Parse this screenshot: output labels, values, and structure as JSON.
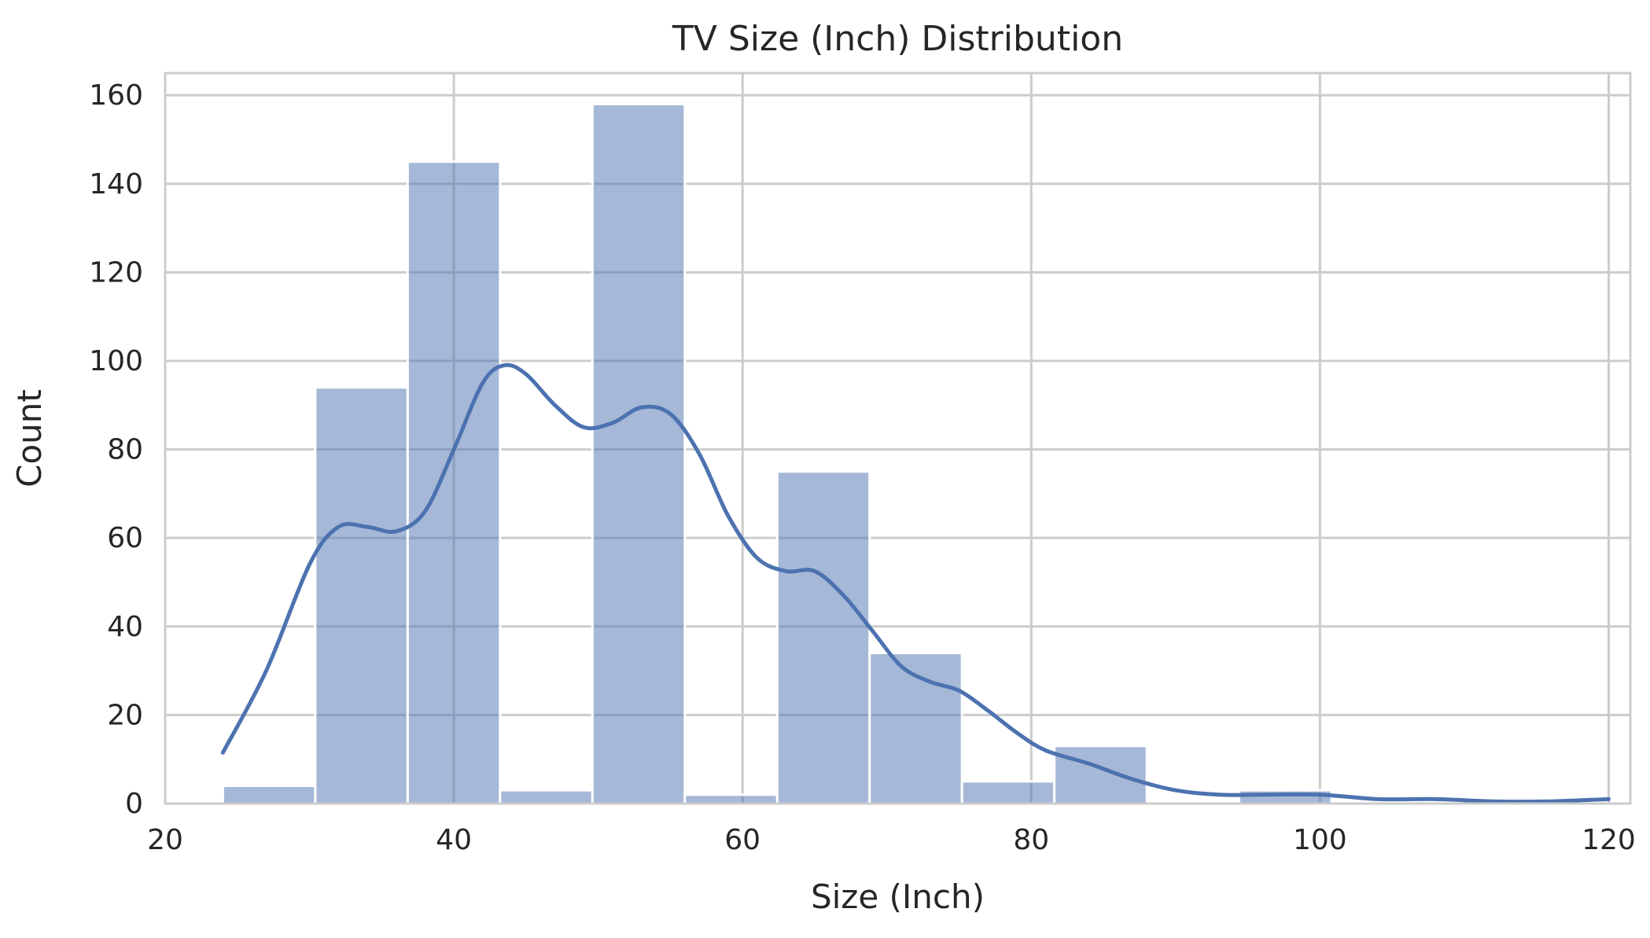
{
  "chart_data": {
    "type": "bar",
    "title": "TV Size (Inch) Distribution",
    "xlabel": "Size (Inch)",
    "ylabel": "Count",
    "xlim": [
      20,
      121.5
    ],
    "ylim": [
      0,
      165
    ],
    "xticks": [
      20,
      40,
      60,
      80,
      100,
      120
    ],
    "yticks": [
      0,
      20,
      40,
      60,
      80,
      100,
      120,
      140,
      160
    ],
    "grid": true,
    "colors": {
      "bar": "#4c72b0",
      "bar_opacity": 0.5,
      "kde": "#4c72b0",
      "grid": "#cccccc",
      "frame": "#cccccc"
    },
    "bins": [
      {
        "start": 24.0,
        "end": 30.4,
        "count": 4
      },
      {
        "start": 30.4,
        "end": 36.8,
        "count": 94
      },
      {
        "start": 36.8,
        "end": 43.2,
        "count": 145
      },
      {
        "start": 43.2,
        "end": 49.6,
        "count": 3
      },
      {
        "start": 49.6,
        "end": 56.0,
        "count": 158
      },
      {
        "start": 56.0,
        "end": 62.4,
        "count": 2
      },
      {
        "start": 62.4,
        "end": 68.8,
        "count": 75
      },
      {
        "start": 68.8,
        "end": 75.2,
        "count": 34
      },
      {
        "start": 75.2,
        "end": 81.6,
        "count": 5
      },
      {
        "start": 81.6,
        "end": 88.0,
        "count": 13
      },
      {
        "start": 88.0,
        "end": 94.4,
        "count": 0
      },
      {
        "start": 94.4,
        "end": 100.8,
        "count": 3
      },
      {
        "start": 100.8,
        "end": 107.2,
        "count": 0
      },
      {
        "start": 107.2,
        "end": 113.6,
        "count": 0
      },
      {
        "start": 113.6,
        "end": 120.0,
        "count": 0
      }
    ],
    "kde": {
      "x": [
        24,
        27,
        30,
        32,
        34,
        36,
        38,
        40,
        42,
        43.5,
        45,
        47,
        49,
        51,
        53,
        55,
        57,
        59,
        61,
        63,
        65,
        67,
        69,
        71,
        73,
        75,
        77,
        79,
        81,
        84,
        87,
        90,
        93,
        96,
        100,
        104,
        108,
        112,
        116,
        120
      ],
      "y": [
        11.5,
        30,
        54,
        62.5,
        62.5,
        61.5,
        66,
        80,
        95,
        99,
        97,
        90,
        85,
        86,
        89.5,
        88,
        79,
        65,
        55.5,
        52.5,
        52.5,
        47,
        39,
        31,
        27.5,
        25.5,
        21,
        16,
        12,
        9,
        5.5,
        3,
        2,
        2,
        2,
        1,
        1,
        0.5,
        0.5,
        1
      ]
    }
  }
}
